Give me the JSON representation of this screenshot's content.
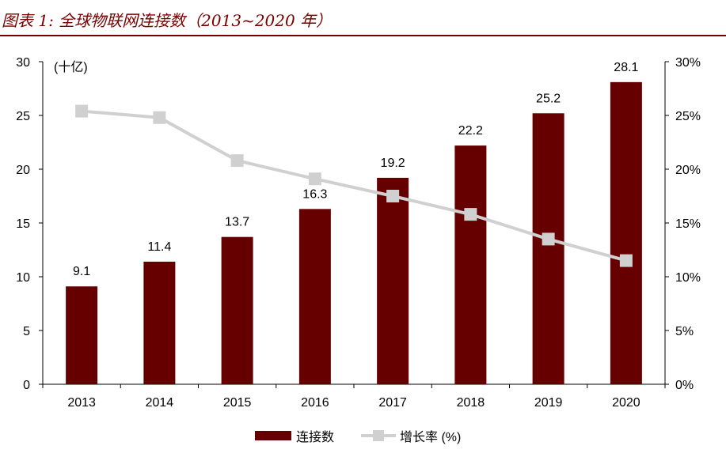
{
  "title": "图表 1: 全球物联网连接数（2013~2020 年）",
  "colors": {
    "bar": "#660000",
    "line": "#d0d0d0",
    "title": "#7a0000"
  },
  "chart_data": {
    "type": "bar",
    "categories": [
      "2013",
      "2014",
      "2015",
      "2016",
      "2017",
      "2018",
      "2019",
      "2020"
    ],
    "unit_label": "(十亿)",
    "left_axis": {
      "ylim": [
        0,
        30
      ],
      "ticks": [
        "0",
        "5",
        "10",
        "15",
        "20",
        "25",
        "30"
      ]
    },
    "right_axis": {
      "ylim": [
        0,
        30
      ],
      "ticks": [
        "0%",
        "5%",
        "10%",
        "15%",
        "20%",
        "25%",
        "30%"
      ]
    },
    "series": [
      {
        "name": "连接数",
        "type": "bar",
        "axis": "left",
        "values": [
          9.1,
          11.4,
          13.7,
          16.3,
          19.2,
          22.2,
          25.2,
          28.1
        ],
        "labels": [
          "9.1",
          "11.4",
          "13.7",
          "16.3",
          "19.2",
          "22.2",
          "25.2",
          "28.1"
        ]
      },
      {
        "name": "增长率 (%)",
        "type": "line",
        "axis": "right",
        "marker": "square",
        "values": [
          25.4,
          24.8,
          20.8,
          19.1,
          17.5,
          15.8,
          13.5,
          11.5
        ]
      }
    ],
    "legend_position": "bottom",
    "grid": false
  }
}
